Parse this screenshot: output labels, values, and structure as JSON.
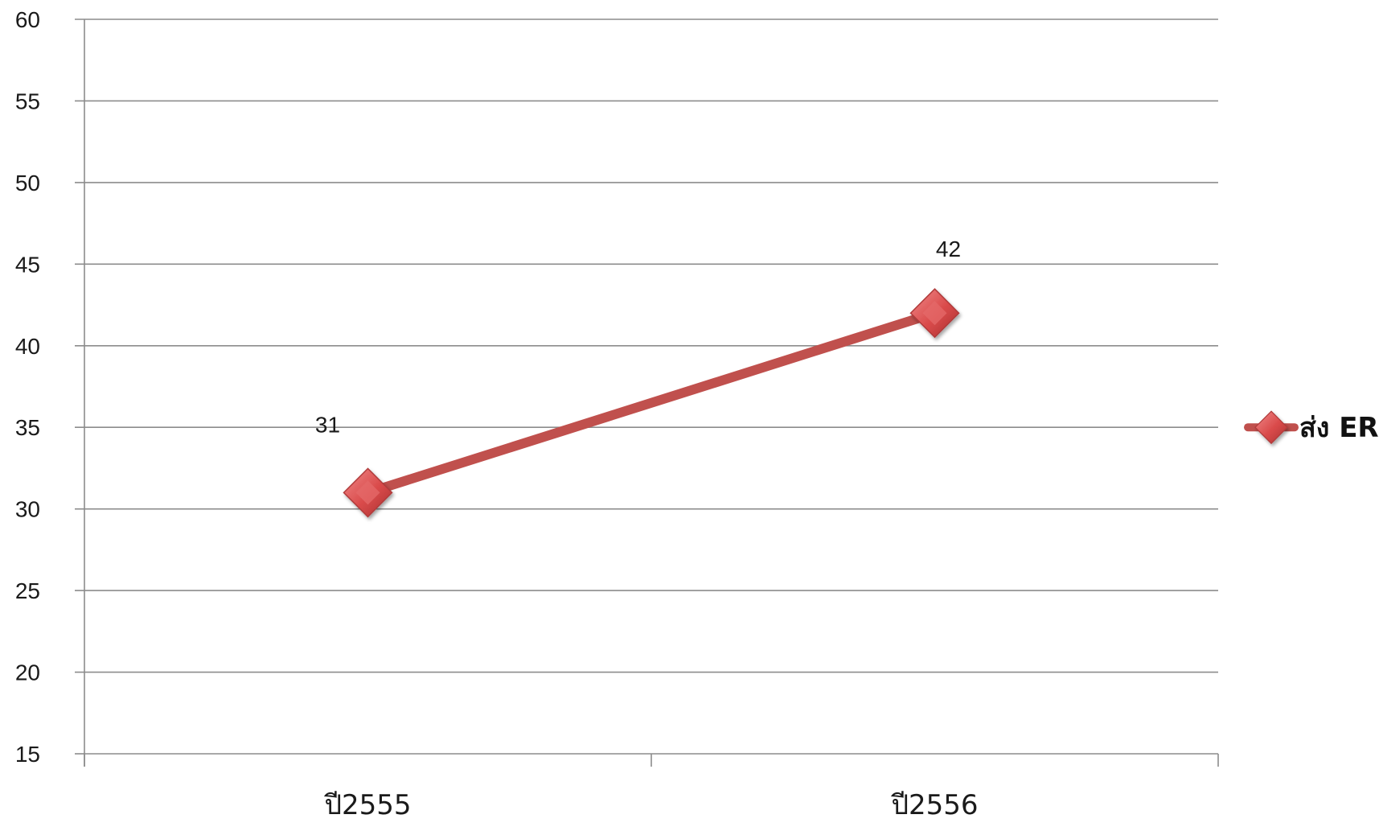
{
  "chart_data": {
    "type": "line",
    "categories": [
      "ปี2555",
      "ปี2556"
    ],
    "series": [
      {
        "name": "ส่ง ER",
        "values": [
          31,
          42
        ],
        "color": "#c0504d",
        "marker_color": "#e05555"
      }
    ],
    "data_labels": [
      "31",
      "42"
    ],
    "ylim": [
      15,
      60
    ],
    "y_ticks": [
      15,
      20,
      25,
      30,
      35,
      40,
      45,
      50,
      55,
      60
    ],
    "grid": true,
    "legend_position": "right",
    "title": "",
    "xlabel": "",
    "ylabel": ""
  }
}
